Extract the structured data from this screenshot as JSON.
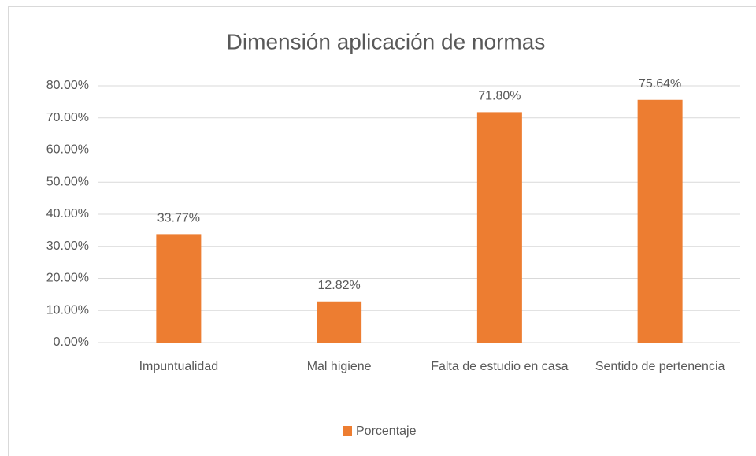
{
  "chart_data": {
    "type": "bar",
    "title": "Dimensión aplicación de normas",
    "categories": [
      "Impuntualidad",
      "Mal higiene",
      "Falta de estudio en casa",
      "Sentido de pertenencia"
    ],
    "series": [
      {
        "name": "Porcentaje",
        "color": "#ed7d31",
        "values": [
          33.77,
          12.82,
          71.8,
          75.64
        ],
        "value_labels": [
          "33.77%",
          "12.82%",
          "71.80%",
          "75.64%"
        ]
      }
    ],
    "ylim": [
      0,
      80
    ],
    "yticks": [
      {
        "value": 0,
        "label": "0.00%"
      },
      {
        "value": 10,
        "label": "10.00%"
      },
      {
        "value": 20,
        "label": "20.00%"
      },
      {
        "value": 30,
        "label": "30.00%"
      },
      {
        "value": 40,
        "label": "40.00%"
      },
      {
        "value": 50,
        "label": "50.00%"
      },
      {
        "value": 60,
        "label": "60.00%"
      },
      {
        "value": 70,
        "label": "70.00%"
      },
      {
        "value": 80,
        "label": "80.00%"
      }
    ],
    "grid": true,
    "legend": "bottom"
  }
}
